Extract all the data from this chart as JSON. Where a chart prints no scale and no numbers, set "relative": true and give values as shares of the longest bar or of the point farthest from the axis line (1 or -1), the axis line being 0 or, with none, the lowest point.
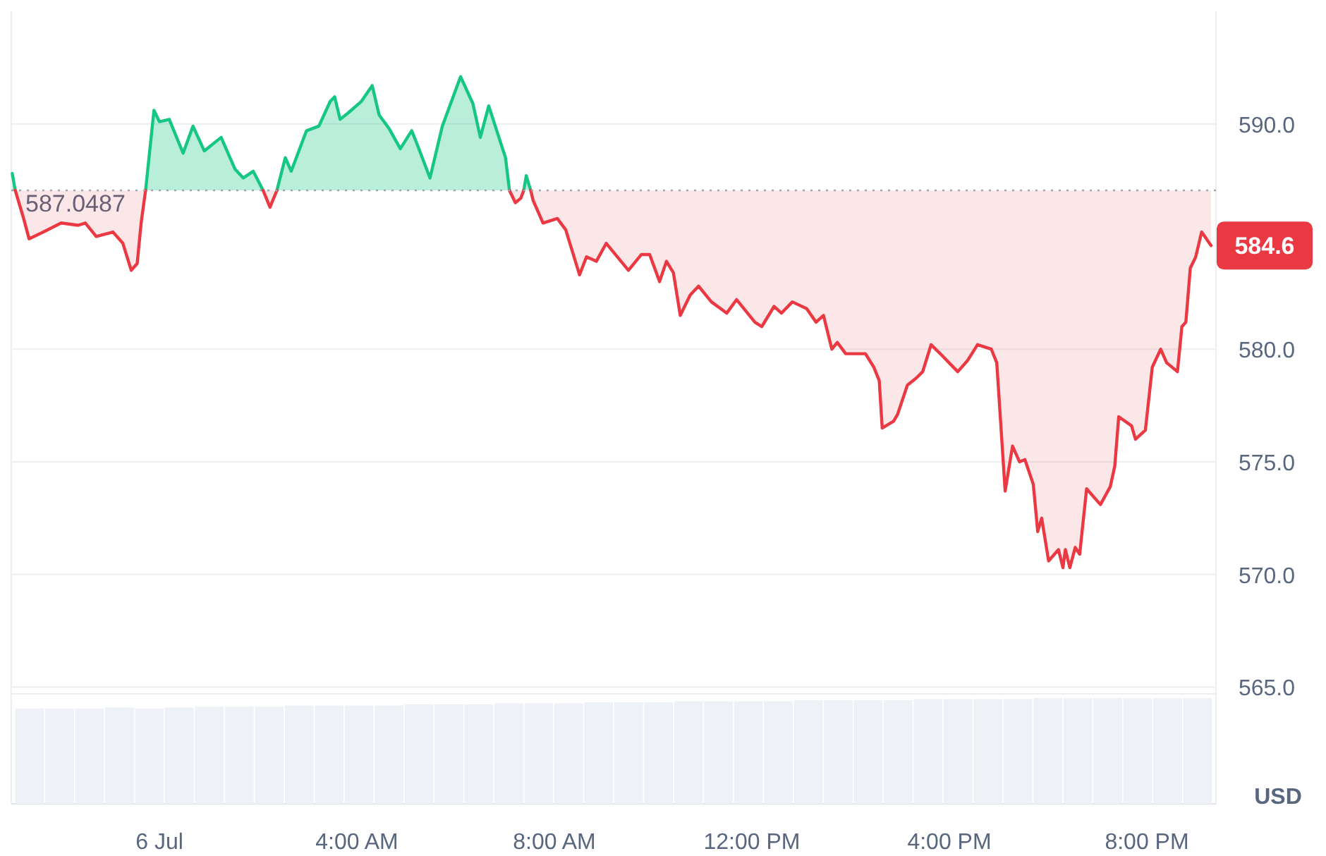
{
  "chart_data": [
    {
      "type": "line",
      "ylabel": "USD",
      "xlim": [
        -3,
        21.4
      ],
      "ylim": [
        564.7,
        595
      ],
      "xticks": [
        {
          "value": 0,
          "label": "6 Jul"
        },
        {
          "value": 4,
          "label": "4:00 AM"
        },
        {
          "value": 8,
          "label": "8:00 AM"
        },
        {
          "value": 12,
          "label": "12:00 PM"
        },
        {
          "value": 16,
          "label": "4:00 PM"
        },
        {
          "value": 20,
          "label": "8:00 PM"
        }
      ],
      "yticks": [
        {
          "value": 565,
          "label": "565.0"
        },
        {
          "value": 570,
          "label": "570.0"
        },
        {
          "value": 575,
          "label": "575.0"
        },
        {
          "value": 580,
          "label": "580.0"
        },
        {
          "value": 590,
          "label": "590.0"
        }
      ],
      "grid": "y",
      "line_style": "solid",
      "marker": "none",
      "ref_lines": [
        {
          "axis": "y",
          "value": 587.0487,
          "label": "587.0487",
          "color": "#a0a6b0",
          "line_style": "dotted"
        }
      ],
      "annotations": [
        {
          "text": "584.6",
          "x": 21.3,
          "y": 584.6
        }
      ],
      "series": [
        {
          "color": "#16c784",
          "x": [
            -2.98,
            -2.92,
            -1.5,
            -0.28,
            -0.11,
            0,
            0.2,
            0.48,
            0.68,
            0.91,
            1.25,
            1.53,
            1.7,
            1.9,
            2.1,
            2.24,
            2.38,
            2.55,
            2.67,
            2.98,
            3.23,
            3.46,
            3.55,
            3.66,
            3.83,
            4.09,
            4.31,
            4.45,
            4.65,
            4.88,
            5.11,
            5.22,
            5.48,
            5.73,
            6.1,
            6.35,
            6.5,
            6.67,
            7.01,
            7.09,
            7.21,
            7.38,
            7.43,
            7.52
          ],
          "values": [
            587.8,
            587.05,
            null,
            587.05,
            590.6,
            590.1,
            590.2,
            588.7,
            589.9,
            588.8,
            589.4,
            588,
            587.6,
            587.9,
            587.05,
            null,
            587.05,
            588.5,
            587.9,
            589.7,
            589.9,
            591,
            591.2,
            590.2,
            590.5,
            591,
            591.7,
            590.4,
            589.8,
            588.9,
            589.7,
            589.1,
            587.6,
            589.9,
            592.1,
            590.9,
            589.4,
            590.8,
            588.5,
            587.05,
            null,
            587.05,
            587.7,
            587.05
          ],
          "lower": [
            587.05,
            587.05,
            null,
            587.05,
            587.05,
            587.05,
            587.05,
            587.05,
            587.05,
            587.05,
            587.05,
            587.05,
            587.05,
            587.05,
            587.05,
            null,
            587.05,
            587.05,
            587.05,
            587.05,
            587.05,
            587.05,
            587.05,
            587.05,
            587.05,
            587.05,
            587.05,
            587.05,
            587.05,
            587.05,
            587.05,
            587.05,
            587.05,
            587.05,
            587.05,
            587.05,
            587.05,
            587.05,
            587.05,
            587.05,
            null,
            587.05,
            587.05,
            587.05
          ],
          "upper": [
            587.8,
            587.05,
            null,
            587.05,
            590.6,
            590.1,
            590.2,
            588.7,
            589.9,
            588.8,
            589.4,
            588,
            587.6,
            587.9,
            587.05,
            null,
            587.05,
            588.5,
            587.9,
            589.7,
            589.9,
            591,
            591.2,
            590.2,
            590.5,
            591,
            591.7,
            590.4,
            589.8,
            588.9,
            589.7,
            589.1,
            587.6,
            589.9,
            592.1,
            590.9,
            589.4,
            590.8,
            588.5,
            587.05,
            null,
            587.05,
            587.7,
            587.05
          ]
        },
        {
          "color": "#ea3943",
          "x": [
            -2.92,
            -2.75,
            -2.64,
            -2.35,
            -1.99,
            -1.65,
            -1.5,
            -1.28,
            -0.94,
            -0.74,
            -0.57,
            -0.45,
            -0.37,
            -0.28,
            1,
            2.1,
            2.24,
            2.38,
            5,
            7.09,
            7.21,
            7.32,
            7.38,
            7.43,
            7.52,
            7.57,
            7.77,
            8.06,
            8.23,
            8.51,
            8.65,
            8.85,
            9.05,
            9.5,
            9.76,
            9.93,
            10.13,
            10.27,
            10.41,
            10.55,
            10.75,
            10.92,
            11.18,
            11.49,
            11.69,
            12.06,
            12.2,
            12.45,
            12.6,
            12.82,
            13.11,
            13.3,
            13.45,
            13.62,
            13.73,
            13.9,
            14.3,
            14.47,
            14.58,
            14.64,
            14.87,
            14.95,
            15.15,
            15.32,
            15.46,
            15.63,
            15.86,
            16.17,
            16.37,
            16.57,
            16.85,
            16.96,
            17.13,
            17.28,
            17.42,
            17.53,
            17.7,
            17.79,
            17.87,
            18.01,
            18.21,
            18.3,
            18.35,
            18.44,
            18.55,
            18.64,
            18.78,
            19.06,
            19.26,
            19.35,
            19.43,
            19.69,
            19.77,
            19.97,
            20.11,
            20.28,
            20.4,
            20.62,
            20.71,
            20.79,
            20.88,
            20.99,
            21.11,
            21.3
          ],
          "values": [
            587.05,
            585.8,
            584.9,
            585.2,
            585.6,
            585.5,
            585.6,
            585,
            585.2,
            584.7,
            583.5,
            583.8,
            585.6,
            587.05,
            null,
            587.05,
            586.3,
            587.05,
            null,
            587.05,
            586.5,
            586.7,
            587.05,
            null,
            587.05,
            586.6,
            585.6,
            585.8,
            585.3,
            583.3,
            584.1,
            583.9,
            584.7,
            583.5,
            584.2,
            584.2,
            583,
            583.9,
            583.4,
            581.5,
            582.4,
            582.8,
            582.1,
            581.6,
            582.2,
            581.2,
            581,
            581.9,
            581.6,
            582.1,
            581.8,
            581.2,
            581.5,
            580,
            580.3,
            579.8,
            579.8,
            579.2,
            578.6,
            576.5,
            576.8,
            577.1,
            578.4,
            578.7,
            579,
            580.2,
            579.7,
            579,
            579.5,
            580.2,
            580,
            579.4,
            573.7,
            575.7,
            575,
            575.1,
            574,
            571.9,
            572.5,
            570.6,
            571.1,
            570.3,
            571.1,
            570.3,
            571.2,
            570.9,
            573.8,
            573.1,
            573.9,
            574.8,
            577,
            576.6,
            576,
            576.4,
            579.2,
            580,
            579.4,
            579,
            581,
            581.2,
            583.6,
            584.1,
            585.2,
            584.6
          ],
          "lower": [
            587.05,
            585.8,
            584.9,
            585.2,
            585.6,
            585.5,
            585.6,
            585,
            585.2,
            584.7,
            583.5,
            583.8,
            585.6,
            587.05,
            null,
            587.05,
            586.3,
            587.05,
            null,
            587.05,
            586.5,
            586.7,
            587.05,
            null,
            587.05,
            586.6,
            585.6,
            585.8,
            585.3,
            583.3,
            584.1,
            583.9,
            584.7,
            583.5,
            584.2,
            584.2,
            583,
            583.9,
            583.4,
            581.5,
            582.4,
            582.8,
            582.1,
            581.6,
            582.2,
            581.2,
            581,
            581.9,
            581.6,
            582.1,
            581.8,
            581.2,
            581.5,
            580,
            580.3,
            579.8,
            579.8,
            579.2,
            578.6,
            576.5,
            576.8,
            577.1,
            578.4,
            578.7,
            579,
            580.2,
            579.7,
            579,
            579.5,
            580.2,
            580,
            579.4,
            573.7,
            575.7,
            575,
            575.1,
            574,
            571.9,
            572.5,
            570.6,
            571.1,
            570.3,
            571.1,
            570.3,
            571.2,
            570.9,
            573.8,
            573.1,
            573.9,
            574.8,
            577,
            576.6,
            576,
            576.4,
            579.2,
            580,
            579.4,
            579,
            581,
            581.2,
            583.6,
            584.1,
            585.2,
            584.6
          ],
          "upper": [
            587.05,
            587.05,
            587.05,
            587.05,
            587.05,
            587.05,
            587.05,
            587.05,
            587.05,
            587.05,
            587.05,
            587.05,
            587.05,
            587.05,
            null,
            587.05,
            587.05,
            587.05,
            null,
            587.05,
            587.05,
            587.05,
            587.05,
            null,
            587.05,
            587.05,
            587.05,
            587.05,
            587.05,
            587.05,
            587.05,
            587.05,
            587.05,
            587.05,
            587.05,
            587.05,
            587.05,
            587.05,
            587.05,
            587.05,
            587.05,
            587.05,
            587.05,
            587.05,
            587.05,
            587.05,
            587.05,
            587.05,
            587.05,
            587.05,
            587.05,
            587.05,
            587.05,
            587.05,
            587.05,
            587.05,
            587.05,
            587.05,
            587.05,
            587.05,
            587.05,
            587.05,
            587.05,
            587.05,
            587.05,
            587.05,
            587.05,
            587.05,
            587.05,
            587.05,
            587.05,
            587.05,
            587.05,
            587.05,
            587.05,
            587.05,
            587.05,
            587.05,
            587.05,
            587.05,
            587.05,
            587.05,
            587.05,
            587.05,
            587.05,
            587.05,
            587.05,
            587.05,
            587.05,
            587.05,
            587.05,
            587.05,
            587.05,
            587.05,
            587.05,
            587.05,
            587.05,
            587.05,
            587.05,
            587.05,
            587.05,
            587.05,
            587.05,
            587.05
          ]
        }
      ]
    },
    {
      "type": "bar",
      "relative": true,
      "color": "#eef1f5",
      "categories": [
        null,
        null,
        null,
        null,
        null,
        null,
        null,
        null,
        null,
        null,
        null,
        null,
        null,
        null,
        null,
        null,
        null,
        null,
        null,
        null,
        null,
        null,
        null,
        null,
        null,
        null,
        null,
        null,
        null,
        null,
        null,
        null,
        null,
        null,
        null,
        null,
        null,
        null,
        null,
        null
      ],
      "values": [
        0.9,
        0.9,
        0.9,
        0.91,
        0.9,
        0.91,
        0.92,
        0.92,
        0.92,
        0.93,
        0.93,
        0.93,
        0.93,
        0.94,
        0.94,
        0.94,
        0.95,
        0.95,
        0.95,
        0.96,
        0.96,
        0.96,
        0.97,
        0.97,
        0.97,
        0.97,
        0.98,
        0.98,
        0.98,
        0.98,
        0.99,
        0.99,
        0.99,
        0.99,
        1,
        1,
        1,
        1,
        1,
        1
      ]
    }
  ]
}
